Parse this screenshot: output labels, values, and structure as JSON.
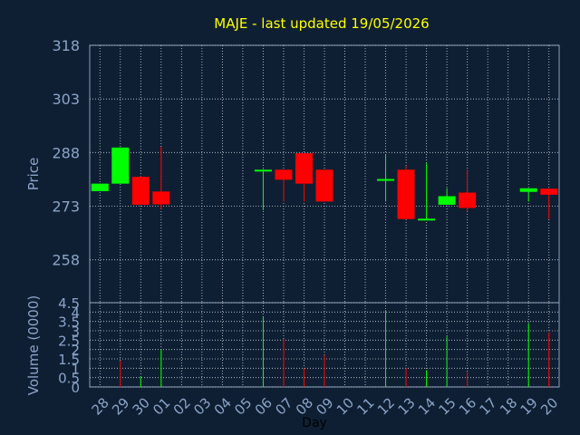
{
  "title": "MAJE - last updated 19/05/2026",
  "colors": {
    "background": "#0f1f33",
    "plot_border": "#8aa0b8",
    "grid": "#c8d0d8",
    "up": "#00ff00",
    "down": "#ff0000",
    "title": "#ffff00",
    "axis_text": "#8aa4c8",
    "xlabel_text": "#000000"
  },
  "chart_data": [
    {
      "type": "candlestick",
      "ylabel": "Price",
      "ylim": [
        246,
        318
      ],
      "yticks": [
        318,
        303,
        288,
        273,
        258
      ],
      "grid": true,
      "categories": [
        "28",
        "29",
        "30",
        "01",
        "02",
        "03",
        "04",
        "05",
        "06",
        "07",
        "08",
        "09",
        "10",
        "11",
        "12",
        "13",
        "14",
        "15",
        "16",
        "17",
        "18",
        "19",
        "20"
      ],
      "series": [
        {
          "x": -0.5,
          "open": 277.2,
          "high": 279.3,
          "low": 277.2,
          "close": 279.3
        },
        {
          "x": 0.5,
          "open": 279.3,
          "high": 289.4,
          "low": 279.3,
          "close": 289.4
        },
        {
          "x": 1.5,
          "open": 281.2,
          "high": 281.4,
          "low": 273.4,
          "close": 273.4
        },
        {
          "x": 2.5,
          "open": 277.1,
          "high": 289.6,
          "low": 272.2,
          "close": 273.5
        },
        {
          "x": 7.5,
          "open": 283.2,
          "high": 283.3,
          "low": 271.9,
          "close": 283.2
        },
        {
          "x": 8.5,
          "open": 283.2,
          "high": 283.2,
          "low": 274.3,
          "close": 280.4
        },
        {
          "x": 9.5,
          "open": 287.8,
          "high": 287.8,
          "low": 274.3,
          "close": 279.3
        },
        {
          "x": 10.5,
          "open": 283.2,
          "high": 283.2,
          "low": 274.3,
          "close": 274.3
        },
        {
          "x": 13.5,
          "open": 280.5,
          "high": 287.5,
          "low": 274.3,
          "close": 280.6
        },
        {
          "x": 14.5,
          "open": 283.2,
          "high": 284.2,
          "low": 269.4,
          "close": 269.4
        },
        {
          "x": 15.5,
          "open": 269.4,
          "high": 285.0,
          "low": 269.0,
          "close": 269.5
        },
        {
          "x": 16.5,
          "open": 273.4,
          "high": 278.0,
          "low": 273.4,
          "close": 275.8
        },
        {
          "x": 17.5,
          "open": 276.8,
          "high": 283.2,
          "low": 271.5,
          "close": 272.5
        },
        {
          "x": 20.5,
          "open": 277.0,
          "high": 278.0,
          "low": 274.3,
          "close": 278.0
        },
        {
          "x": 21.5,
          "open": 277.9,
          "high": 277.9,
          "low": 269.4,
          "close": 276.2
        }
      ]
    },
    {
      "type": "bar",
      "ylabel": "Volume (0000)",
      "xlabel": "Day",
      "ylim": [
        0,
        4.5
      ],
      "yticks": [
        "4.5",
        "4",
        "3.5",
        "3",
        "2.5",
        "2",
        "1.5",
        "1",
        "0.5",
        "0"
      ],
      "grid": true,
      "categories": [
        "28",
        "29",
        "30",
        "01",
        "02",
        "03",
        "04",
        "05",
        "06",
        "07",
        "08",
        "09",
        "10",
        "11",
        "12",
        "13",
        "14",
        "15",
        "16",
        "17",
        "18",
        "19",
        "20"
      ],
      "series": [
        {
          "x": 0.5,
          "value": 1.4,
          "color": "down"
        },
        {
          "x": 1.5,
          "value": 0.55,
          "color": "up"
        },
        {
          "x": 2.5,
          "value": 2.0,
          "color": "up"
        },
        {
          "x": 7.5,
          "value": 3.75,
          "color": "up"
        },
        {
          "x": 8.5,
          "value": 2.55,
          "color": "down"
        },
        {
          "x": 9.5,
          "value": 1.0,
          "color": "down"
        },
        {
          "x": 10.5,
          "value": 1.7,
          "color": "down"
        },
        {
          "x": 13.5,
          "value": 4.1,
          "color": "up"
        },
        {
          "x": 14.5,
          "value": 1.0,
          "color": "down"
        },
        {
          "x": 15.5,
          "value": 0.9,
          "color": "up"
        },
        {
          "x": 16.5,
          "value": 2.7,
          "color": "up"
        },
        {
          "x": 17.5,
          "value": 0.8,
          "color": "down"
        },
        {
          "x": 20.5,
          "value": 3.4,
          "color": "up"
        },
        {
          "x": 21.5,
          "value": 2.9,
          "color": "down"
        }
      ]
    }
  ]
}
